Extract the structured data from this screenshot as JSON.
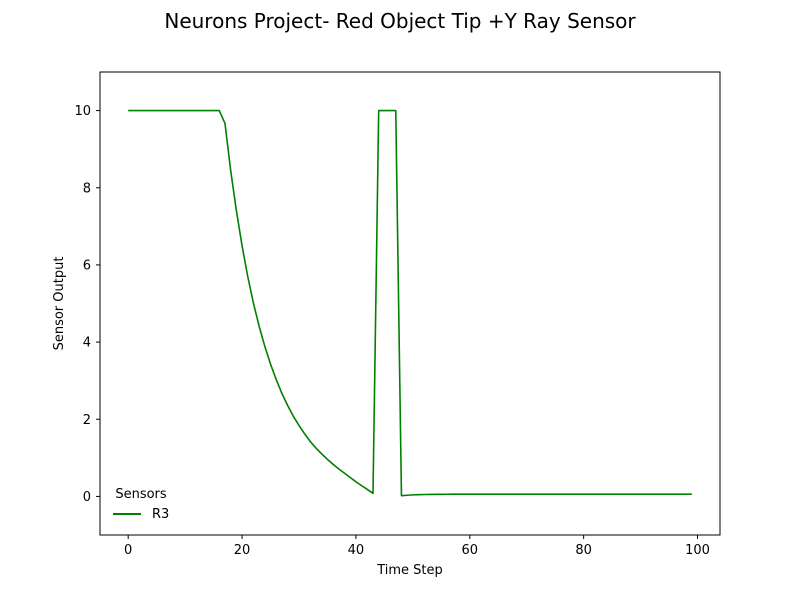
{
  "chart_data": {
    "type": "line",
    "title": "Neurons Project- Red Object Tip +Y Ray Sensor",
    "xlabel": "Time Step",
    "ylabel": "Sensor Output",
    "xlim": [
      -4.95,
      103.95
    ],
    "ylim": [
      -1.0,
      11.0
    ],
    "xticks": [
      0,
      20,
      40,
      60,
      80,
      100
    ],
    "yticks": [
      0,
      2,
      4,
      6,
      8,
      10
    ],
    "grid": false,
    "legend": {
      "title": "Sensors",
      "placement": "lower-left"
    },
    "series": [
      {
        "name": "R3",
        "color": "#008000",
        "x": [
          0,
          1,
          2,
          3,
          4,
          5,
          6,
          7,
          8,
          9,
          10,
          11,
          12,
          13,
          14,
          15,
          16,
          17,
          18,
          19,
          20,
          21,
          22,
          23,
          24,
          25,
          26,
          27,
          28,
          29,
          30,
          31,
          32,
          33,
          34,
          35,
          36,
          37,
          38,
          39,
          40,
          41,
          42,
          43,
          44,
          45,
          46,
          47,
          48,
          49,
          50,
          51,
          52,
          53,
          54,
          55,
          56,
          57,
          58,
          59,
          60,
          61,
          62,
          63,
          64,
          65,
          66,
          67,
          68,
          69,
          70,
          71,
          72,
          73,
          74,
          75,
          76,
          77,
          78,
          79,
          80,
          81,
          82,
          83,
          84,
          85,
          86,
          87,
          88,
          89,
          90,
          91,
          92,
          93,
          94,
          95,
          96,
          97,
          98,
          99
        ],
        "y": [
          10,
          10,
          10,
          10,
          10,
          10,
          10,
          10,
          10,
          10,
          10,
          10,
          10,
          10,
          10,
          10,
          10,
          9.67,
          8.45,
          7.41,
          6.5,
          5.7,
          5.01,
          4.41,
          3.89,
          3.43,
          3.03,
          2.67,
          2.36,
          2.08,
          1.84,
          1.62,
          1.42,
          1.25,
          1.1,
          0.96,
          0.83,
          0.71,
          0.6,
          0.49,
          0.38,
          0.28,
          0.18,
          0.08,
          10,
          10,
          10,
          10,
          0.02,
          0.03,
          0.04,
          0.045,
          0.05,
          0.052,
          0.054,
          0.055,
          0.056,
          0.057,
          0.057,
          0.057,
          0.057,
          0.057,
          0.057,
          0.057,
          0.057,
          0.057,
          0.057,
          0.057,
          0.057,
          0.057,
          0.057,
          0.057,
          0.057,
          0.057,
          0.057,
          0.057,
          0.057,
          0.057,
          0.057,
          0.057,
          0.057,
          0.057,
          0.057,
          0.057,
          0.057,
          0.057,
          0.057,
          0.057,
          0.057,
          0.057,
          0.057,
          0.057,
          0.057,
          0.057,
          0.057,
          0.057,
          0.057,
          0.057,
          0.057,
          0.057
        ]
      }
    ]
  }
}
